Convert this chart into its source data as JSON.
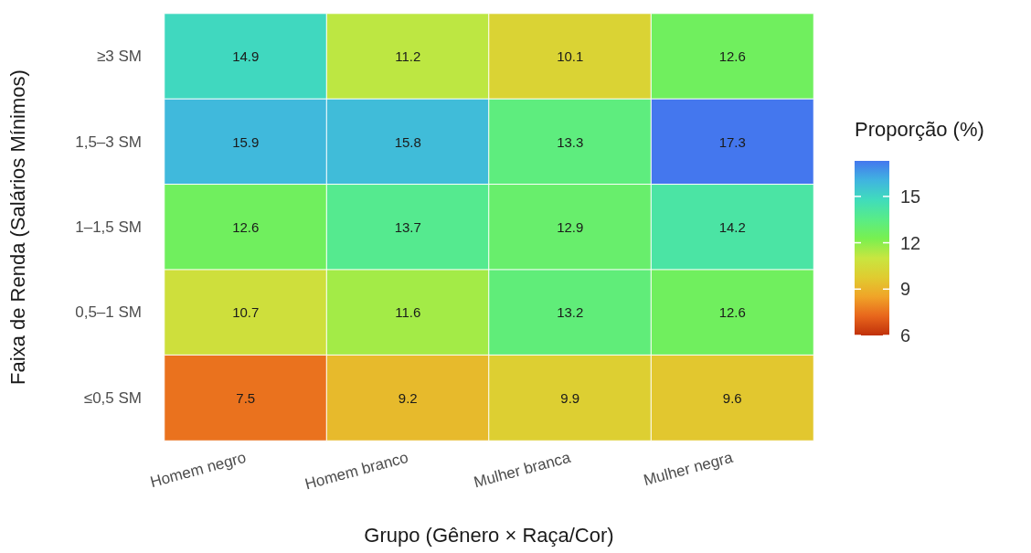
{
  "chart_data": {
    "type": "heatmap",
    "xlabel": "Grupo (Gênero × Raça/Cor)",
    "ylabel": "Faixa de Renda (Salários Mínimos)",
    "clabel": "Proporção (%)",
    "categories": [
      "Homem negro",
      "Homem branco",
      "Mulher branca",
      "Mulher negra"
    ],
    "y_categories": [
      "≥3 SM",
      "1,5–3 SM",
      "1–1,5 SM",
      "0,5–1 SM",
      "≤0,5 SM"
    ],
    "cells": [
      [
        14.9,
        11.2,
        10.1,
        12.6
      ],
      [
        15.9,
        15.8,
        13.3,
        17.3
      ],
      [
        12.6,
        13.7,
        12.9,
        14.2
      ],
      [
        10.7,
        11.6,
        13.2,
        12.6
      ],
      [
        7.5,
        9.2,
        9.9,
        9.6
      ]
    ],
    "clim": [
      6,
      17.3
    ],
    "cticks": [
      6,
      9,
      12,
      15
    ],
    "colors": [
      "#c0300a",
      "#e8661c",
      "#f0a428",
      "#e0cc30",
      "#c8e640",
      "#78f050",
      "#58ec88",
      "#40dcbc",
      "#40b4e0",
      "#4477ee"
    ],
    "data_labels": true
  }
}
